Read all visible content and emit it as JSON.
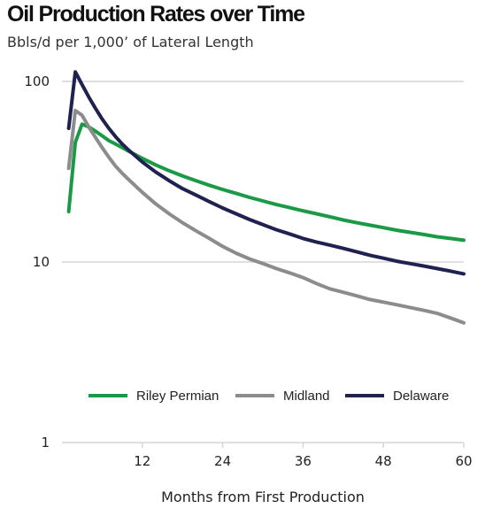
{
  "chart_data": {
    "type": "line",
    "title": "Oil Production Rates over Time",
    "subtitle": "Bbls/d per 1,000’ of Lateral Length",
    "xlabel": "Months from First Production",
    "ylabel": "",
    "y_scale": "log",
    "ylim": [
      1,
      100
    ],
    "xlim": [
      0,
      60
    ],
    "x_ticks": [
      12,
      24,
      36,
      48,
      60
    ],
    "y_ticks": [
      1,
      10,
      100
    ],
    "y_tick_labels": [
      "1",
      "10",
      "100"
    ],
    "grid": "horizontal",
    "legend_position": "bottom-inside",
    "series": [
      {
        "name": "Riley Permian",
        "color": "#1a9a45",
        "x": [
          1,
          2,
          3,
          4,
          5,
          6,
          7,
          8,
          9,
          10,
          12,
          14,
          16,
          18,
          20,
          22,
          24,
          26,
          28,
          30,
          32,
          34,
          36,
          38,
          40,
          42,
          44,
          46,
          48,
          50,
          52,
          54,
          56,
          58,
          60
        ],
        "values": [
          19,
          46,
          58,
          56,
          53,
          50,
          47,
          45,
          43,
          41,
          37.5,
          34.5,
          32,
          30,
          28.2,
          26.6,
          25.2,
          24,
          22.8,
          21.8,
          20.8,
          20,
          19.2,
          18.5,
          17.8,
          17.1,
          16.5,
          16,
          15.5,
          15,
          14.6,
          14.2,
          13.8,
          13.5,
          13.2
        ]
      },
      {
        "name": "Midland",
        "color": "#8c8c8c",
        "x": [
          1,
          2,
          3,
          4,
          5,
          6,
          7,
          8,
          9,
          10,
          12,
          14,
          16,
          18,
          20,
          22,
          24,
          26,
          28,
          30,
          32,
          34,
          36,
          38,
          40,
          42,
          44,
          46,
          48,
          50,
          52,
          54,
          56,
          58,
          60
        ],
        "values": [
          33,
          69,
          65,
          56,
          49,
          43,
          38,
          34,
          31,
          28.5,
          24.3,
          21,
          18.5,
          16.5,
          14.9,
          13.5,
          12.2,
          11.2,
          10.4,
          9.8,
          9.2,
          8.7,
          8.2,
          7.6,
          7.1,
          6.8,
          6.5,
          6.2,
          6.0,
          5.8,
          5.6,
          5.4,
          5.2,
          4.9,
          4.6
        ]
      },
      {
        "name": "Delaware",
        "color": "#1f2150",
        "x": [
          1,
          2,
          3,
          4,
          5,
          6,
          7,
          8,
          9,
          10,
          12,
          14,
          16,
          18,
          20,
          22,
          24,
          26,
          28,
          30,
          32,
          34,
          36,
          38,
          40,
          42,
          44,
          46,
          48,
          50,
          52,
          54,
          56,
          58,
          60
        ],
        "values": [
          55,
          113,
          96,
          82,
          71,
          62,
          55,
          49.5,
          45,
          41.5,
          35.8,
          31.5,
          28.2,
          25.5,
          23.5,
          21.6,
          19.9,
          18.5,
          17.2,
          16.1,
          15.1,
          14.3,
          13.5,
          12.9,
          12.4,
          11.9,
          11.4,
          10.9,
          10.5,
          10.1,
          9.8,
          9.5,
          9.2,
          8.9,
          8.6
        ]
      }
    ]
  }
}
